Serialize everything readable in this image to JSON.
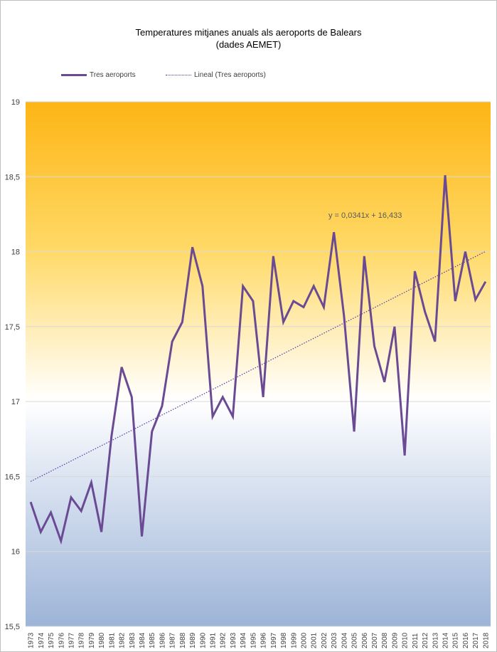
{
  "chart_data": {
    "type": "line",
    "title": "Temperatures mitjanes anuals als aeroports de Balears",
    "subtitle": "(dades AEMET)",
    "xlabel": "",
    "ylabel": "",
    "ylim": [
      15.5,
      19
    ],
    "y_ticks": [
      "15,5",
      "16",
      "16,5",
      "17",
      "17,5",
      "18",
      "18,5",
      "19"
    ],
    "y_tick_values": [
      15.5,
      16,
      16.5,
      17,
      17.5,
      18,
      18.5,
      19
    ],
    "grid": true,
    "legend_position": "top-left",
    "background_gradient": [
      "#fdb515",
      "#ffd966",
      "#ffffff",
      "#dfe7f3",
      "#9db4d8"
    ],
    "categories": [
      "1973",
      "1974",
      "1975",
      "1976",
      "1977",
      "1978",
      "1979",
      "1980",
      "1981",
      "1982",
      "1983",
      "1984",
      "1985",
      "1986",
      "1987",
      "1988",
      "1989",
      "1990",
      "1991",
      "1992",
      "1993",
      "1994",
      "1995",
      "1996",
      "1997",
      "1998",
      "1999",
      "2000",
      "2001",
      "2002",
      "2003",
      "2004",
      "2005",
      "2006",
      "2007",
      "2008",
      "2009",
      "2010",
      "2011",
      "2012",
      "2013",
      "2014",
      "2015",
      "2016",
      "2017",
      "2018"
    ],
    "series": [
      {
        "name": "Tres aeroports",
        "color": "#6a4a93",
        "style": "solid",
        "values": [
          16.33,
          16.13,
          16.26,
          16.07,
          16.36,
          16.27,
          16.46,
          16.13,
          16.77,
          17.23,
          17.03,
          16.1,
          16.8,
          16.97,
          17.4,
          17.53,
          18.03,
          17.77,
          16.9,
          17.03,
          16.9,
          17.77,
          17.67,
          17.03,
          17.97,
          17.53,
          17.67,
          17.63,
          17.77,
          17.63,
          18.13,
          17.57,
          16.8,
          17.97,
          17.37,
          17.13,
          17.5,
          16.64,
          17.87,
          17.6,
          17.4,
          18.51,
          17.67,
          18.0,
          17.68,
          17.8
        ]
      },
      {
        "name": "Lineal  (Tres aeroports)",
        "color": "#4b38a8",
        "style": "dotted",
        "trendline": {
          "slope": 0.0341,
          "intercept": 16.433
        }
      }
    ],
    "annotations": [
      {
        "text": "y = 0,0341x + 16,433"
      }
    ]
  }
}
